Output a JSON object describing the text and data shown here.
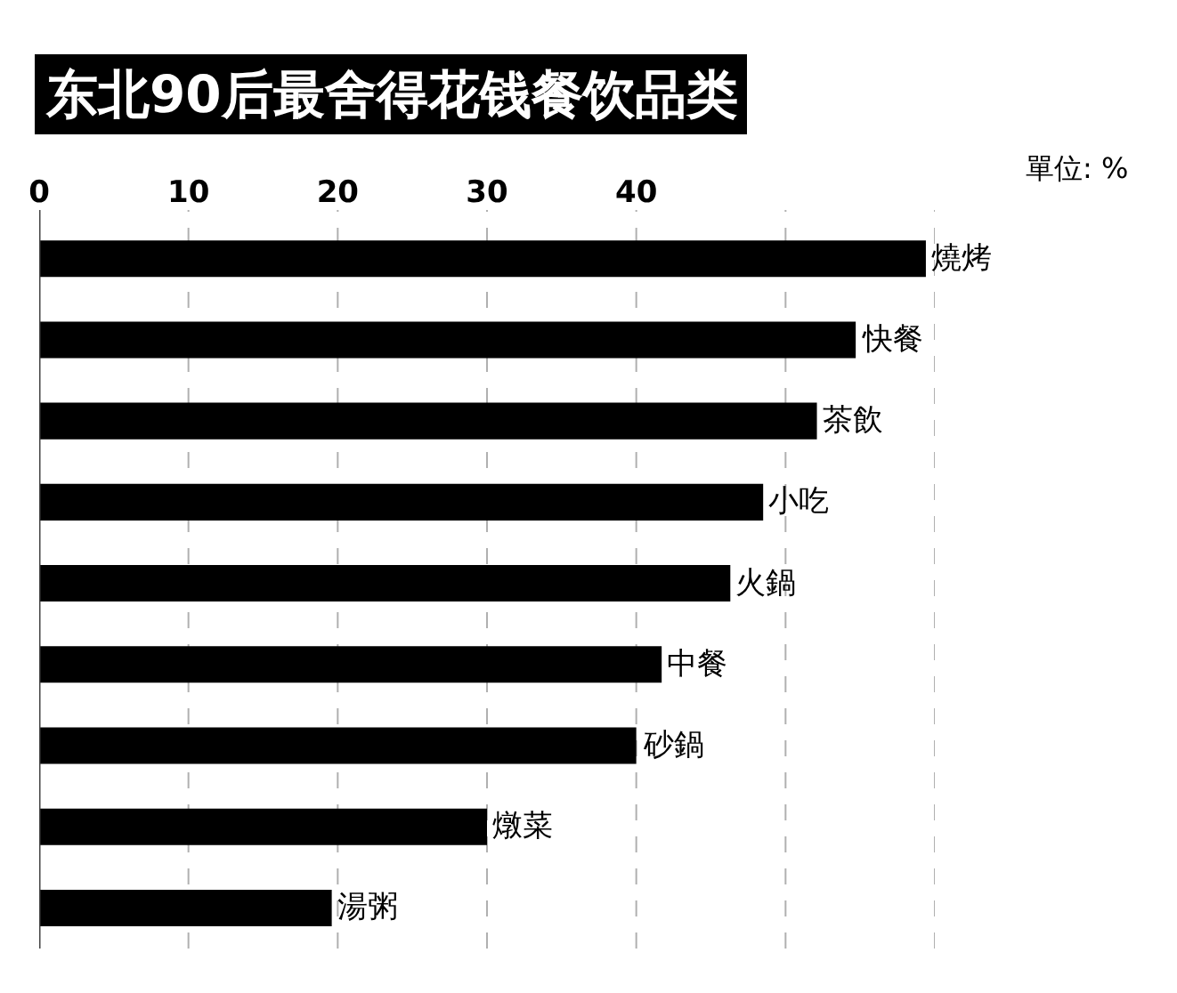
{
  "chart_data": {
    "type": "bar",
    "orientation": "horizontal",
    "title": "东北90后最舍得花钱餐饮品类",
    "annotations": [
      "單位: %"
    ],
    "categories": [
      "燒烤",
      "快餐",
      "茶飲",
      "小吃",
      "火鍋",
      "中餐",
      "砂鍋",
      "燉菜",
      "湯粥"
    ],
    "values": [
      59.4,
      54.7,
      52.1,
      48.5,
      46.3,
      41.7,
      40,
      30,
      19.6
    ],
    "color": "#000000",
    "xlim": [
      0,
      60
    ],
    "xticks": [
      0,
      10,
      20,
      30,
      40,
      {
        "value": 50,
        "label": null
      },
      {
        "value": 60,
        "label": null
      }
    ],
    "grid": "x",
    "line_style": "dashed",
    "tick_labels": "x"
  }
}
